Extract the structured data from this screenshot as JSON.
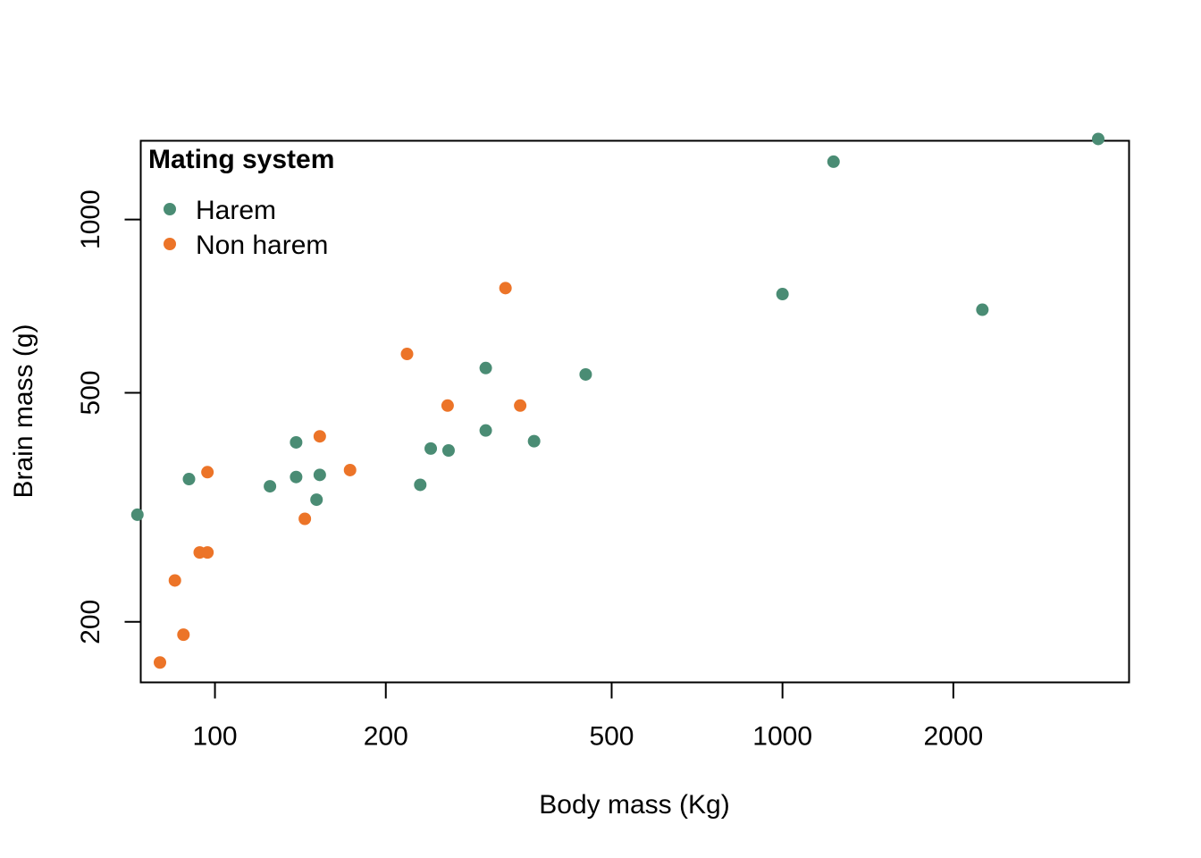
{
  "chart_data": {
    "type": "scatter",
    "xlabel": "Body mass (Kg)",
    "ylabel": "Brain mass (g)",
    "xscale": "log",
    "yscale": "log",
    "xlim": [
      74,
      4080
    ],
    "ylim": [
      157,
      1370
    ],
    "x_ticks": [
      100,
      200,
      500,
      1000,
      2000
    ],
    "x_tick_labels": [
      "100",
      "200",
      "500",
      "1000",
      "2000"
    ],
    "y_ticks": [
      200,
      500,
      1000
    ],
    "y_tick_labels": [
      "200",
      "500",
      "1000"
    ],
    "legend": {
      "title": "Mating system",
      "placement": "top-left",
      "entries": [
        "Harem",
        "Non harem"
      ]
    },
    "colors": {
      "harem": "#4a8c74",
      "non_harem": "#ec7428"
    },
    "series": [
      {
        "name": "Harem",
        "color": "#4a8c74",
        "points": [
          {
            "x": 73,
            "y": 307
          },
          {
            "x": 90,
            "y": 354
          },
          {
            "x": 125,
            "y": 344
          },
          {
            "x": 139,
            "y": 357
          },
          {
            "x": 139,
            "y": 410
          },
          {
            "x": 151,
            "y": 326
          },
          {
            "x": 153,
            "y": 360
          },
          {
            "x": 230,
            "y": 346
          },
          {
            "x": 240,
            "y": 400
          },
          {
            "x": 258,
            "y": 397
          },
          {
            "x": 300,
            "y": 430
          },
          {
            "x": 300,
            "y": 552
          },
          {
            "x": 365,
            "y": 412
          },
          {
            "x": 450,
            "y": 538
          },
          {
            "x": 1000,
            "y": 742
          },
          {
            "x": 1230,
            "y": 1260
          },
          {
            "x": 2250,
            "y": 697
          },
          {
            "x": 3600,
            "y": 1380
          }
        ]
      },
      {
        "name": "Non harem",
        "color": "#ec7428",
        "points": [
          {
            "x": 80,
            "y": 170
          },
          {
            "x": 85,
            "y": 236
          },
          {
            "x": 88,
            "y": 190
          },
          {
            "x": 94,
            "y": 264
          },
          {
            "x": 97,
            "y": 264
          },
          {
            "x": 97,
            "y": 364
          },
          {
            "x": 144,
            "y": 302
          },
          {
            "x": 153,
            "y": 420
          },
          {
            "x": 173,
            "y": 367
          },
          {
            "x": 218,
            "y": 584
          },
          {
            "x": 257,
            "y": 475
          },
          {
            "x": 325,
            "y": 760
          },
          {
            "x": 345,
            "y": 475
          }
        ]
      }
    ]
  }
}
